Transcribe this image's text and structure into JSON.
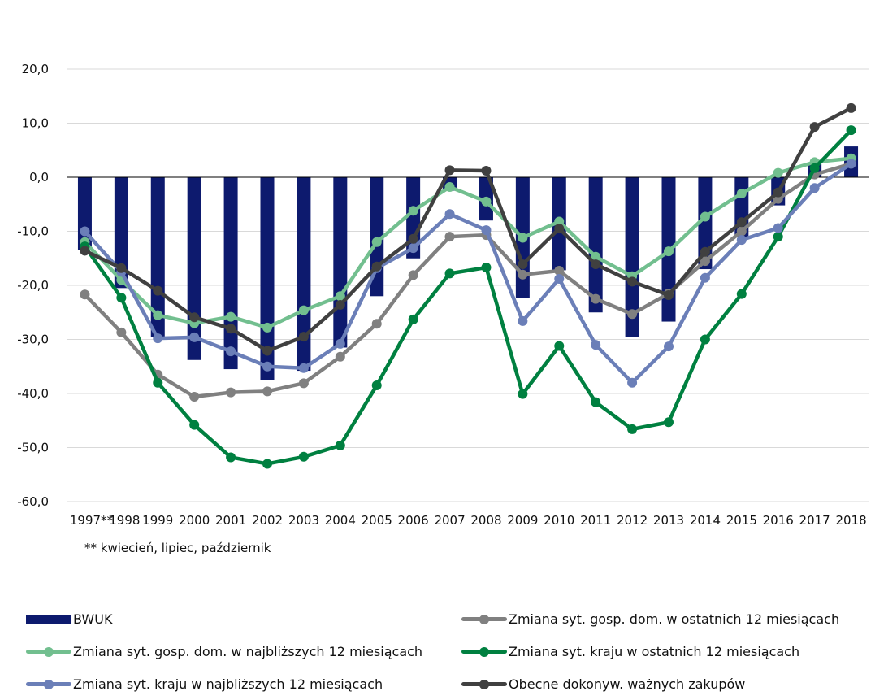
{
  "chart_data": {
    "type": "bar+line",
    "title": "",
    "xlabel": "",
    "ylabel": "",
    "ylim": [
      -60,
      20
    ],
    "yticks": [
      20,
      10,
      0,
      -10,
      -20,
      -30,
      -40,
      -50,
      -60
    ],
    "ytick_labels": [
      "20,0",
      "10,0",
      "0,0",
      "-10,0",
      "-20,0",
      "-30,0",
      "-40,0",
      "-50,0",
      "-60,0"
    ],
    "grid": true,
    "categories": [
      "1997**",
      "1998",
      "1999",
      "2000",
      "2001",
      "2002",
      "2003",
      "2004",
      "2005",
      "2006",
      "2007",
      "2008",
      "2009",
      "2010",
      "2011",
      "2012",
      "2013",
      "2014",
      "2015",
      "2016",
      "2017",
      "2018"
    ],
    "bar_series": {
      "name": "BWUK",
      "color": "#0d1a6e",
      "values": [
        -13.5,
        -20.5,
        -29.5,
        -33.8,
        -35.5,
        -37.5,
        -35.8,
        -31.5,
        -22.0,
        -15.0,
        -2.5,
        -8.0,
        -22.3,
        -17.2,
        -25.0,
        -29.5,
        -26.7,
        -17.0,
        -11.0,
        -5.2,
        2.5,
        5.7
      ]
    },
    "series": [
      {
        "name": "Zmiana syt. gosp. dom. w ostatnich 12 miesiącach",
        "color": "#808080",
        "values": [
          -21.7,
          -28.7,
          -36.5,
          -40.6,
          -39.8,
          -39.6,
          -38.1,
          -33.2,
          -27.1,
          -18.1,
          -11.0,
          -10.7,
          -18.0,
          -17.3,
          -22.5,
          -25.3,
          -21.5,
          -15.5,
          -10.0,
          -4.0,
          0.5,
          2.5
        ]
      },
      {
        "name": "Zmiana syt. gosp. dom. w najbliższych 12 miesiącach",
        "color": "#72bf8f",
        "values": [
          -12.0,
          -19.0,
          -25.5,
          -27.0,
          -25.8,
          -27.8,
          -24.6,
          -22.0,
          -12.0,
          -6.2,
          -1.8,
          -4.5,
          -11.2,
          -8.2,
          -14.7,
          -18.3,
          -13.7,
          -7.3,
          -3.0,
          0.8,
          2.8,
          3.5
        ]
      },
      {
        "name": "Zmiana syt. kraju w ostatnich 12 miesiącach",
        "color": "#008040",
        "values": [
          -12.8,
          -22.3,
          -38.0,
          -45.8,
          -51.8,
          -53.0,
          -51.7,
          -49.6,
          -38.5,
          -26.3,
          -17.8,
          -16.7,
          -40.1,
          -31.2,
          -41.6,
          -46.6,
          -45.3,
          -30.0,
          -21.6,
          -11.0,
          1.7,
          8.7
        ]
      },
      {
        "name": "Zmiana syt. kraju w najbliższych 12 miesiącach",
        "color": "#6b7fb8",
        "values": [
          -10.0,
          -17.5,
          -29.8,
          -29.6,
          -32.2,
          -35.0,
          -35.3,
          -30.8,
          -16.8,
          -13.1,
          -6.8,
          -9.8,
          -26.6,
          -18.8,
          -31.0,
          -38.0,
          -31.3,
          -18.6,
          -11.6,
          -9.4,
          -2.0,
          2.5
        ]
      },
      {
        "name": "Obecne dokonyw. ważnych zakupów",
        "color": "#404040",
        "values": [
          -13.6,
          -16.8,
          -21.0,
          -25.9,
          -28.0,
          -32.1,
          -29.5,
          -23.6,
          -16.5,
          -11.4,
          1.3,
          1.2,
          -16.1,
          -9.5,
          -16.1,
          -19.3,
          -21.8,
          -13.8,
          -8.3,
          -2.8,
          9.3,
          12.8
        ]
      }
    ],
    "legend_placement": "bottom",
    "note": "** kwiecień, lipiec, październik"
  }
}
